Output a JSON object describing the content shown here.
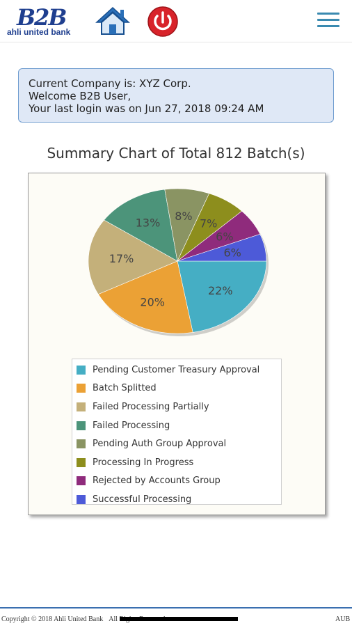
{
  "header": {
    "logo_mark": "B2B",
    "logo_subtitle": "ahli united bank",
    "home_icon": "home-icon",
    "power_icon": "power-icon",
    "menu_icon": "hamburger-menu-icon"
  },
  "info": {
    "company_line": "Current Company is: XYZ Corp.",
    "welcome_line": "Welcome B2B User,",
    "last_login_line": "Your last login was on Jun 27, 2018 09:24 AM"
  },
  "chart_title": "Summary Chart of Total 812 Batch(s)",
  "chart_data": {
    "type": "pie",
    "title": "Summary Chart of Total 812 Batch(s)",
    "legend_position": "bottom",
    "slices": [
      {
        "name": "Pending Customer Treasury Approval",
        "value": 22,
        "label": "22%",
        "color": "#45aec4"
      },
      {
        "name": "Batch Splitted",
        "value": 20,
        "label": "20%",
        "color": "#eba135"
      },
      {
        "name": "Failed Processing Partially",
        "value": 17,
        "label": "17%",
        "color": "#c4b07a"
      },
      {
        "name": "Failed Processing",
        "value": 13,
        "label": "13%",
        "color": "#4c947a"
      },
      {
        "name": "Pending Auth Group Approval",
        "value": 8,
        "label": "8%",
        "color": "#8a9463"
      },
      {
        "name": "Processing In Progress",
        "value": 7,
        "label": "7%",
        "color": "#8d8e1d"
      },
      {
        "name": "Rejected by Accounts Group",
        "value": 6,
        "label": "6%",
        "color": "#8f2b7c"
      },
      {
        "name": "Successful Processing",
        "value": 6,
        "label": "6%",
        "color": "#4d5ad8"
      }
    ]
  },
  "footer": {
    "copyright": "Copyright © 2018 Ahli United Bank",
    "rights": "All Rights Reserved.",
    "right_label": "AUB"
  }
}
